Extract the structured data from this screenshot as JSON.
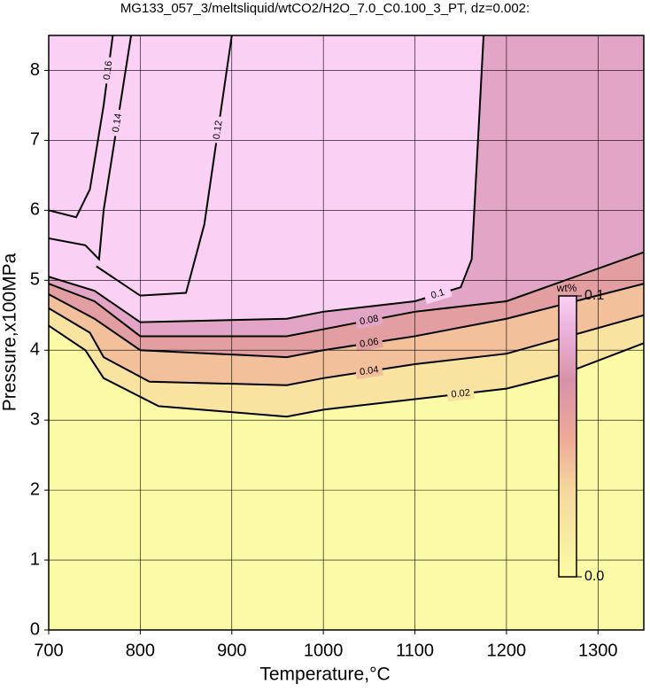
{
  "chart_data": {
    "type": "contour",
    "title": "MG133_057_3/meltsliquid/wtCO2/H2O_7.0_C0.100_3_PT, dz=0.002:",
    "xlabel": "Temperature,°C",
    "ylabel": "Pressure,x100MPa",
    "xlim": [
      700,
      1350
    ],
    "ylim": [
      0,
      8.5
    ],
    "xticks": [
      700,
      800,
      900,
      1000,
      1100,
      1200,
      1300
    ],
    "yticks": [
      0,
      1,
      2,
      3,
      4,
      5,
      6,
      7,
      8
    ],
    "grid": true,
    "colorbar": {
      "label": "wt%",
      "zlim": [
        0,
        0.1
      ],
      "ticks": [
        {
          "value": 0,
          "label": "0.0"
        },
        0.1
      ]
    },
    "colorscale": [
      [
        0,
        "#fbfaa6"
      ],
      [
        0.03,
        "#f6d89e"
      ],
      [
        0.05,
        "#eda99a"
      ],
      [
        0.07,
        "#d792a8"
      ],
      [
        0.09,
        "#eeb7e3"
      ],
      [
        0.1,
        "#fbd0f5"
      ]
    ],
    "contours": [
      {
        "level": 0.02,
        "x": [
          700,
          740,
          760,
          820,
          960,
          1000,
          1100,
          1200,
          1260,
          1350
        ],
        "y": [
          4.35,
          4.0,
          3.6,
          3.2,
          3.05,
          3.15,
          3.3,
          3.45,
          3.65,
          4.1
        ]
      },
      {
        "level": 0.04,
        "x": [
          700,
          745,
          760,
          810,
          960,
          1000,
          1100,
          1200,
          1350
        ],
        "y": [
          4.6,
          4.25,
          3.9,
          3.55,
          3.5,
          3.6,
          3.8,
          3.95,
          4.5
        ]
      },
      {
        "level": 0.06,
        "x": [
          700,
          750,
          800,
          960,
          1000,
          1100,
          1200,
          1350
        ],
        "y": [
          4.8,
          4.45,
          4.0,
          3.9,
          4.0,
          4.2,
          4.45,
          4.95
        ]
      },
      {
        "level": 0.08,
        "x": [
          700,
          750,
          800,
          960,
          1000,
          1100,
          1200,
          1350
        ],
        "y": [
          4.95,
          4.7,
          4.2,
          4.2,
          4.3,
          4.55,
          4.7,
          5.4
        ]
      },
      {
        "level": 0.1,
        "x": [
          700,
          750,
          800,
          960,
          1000,
          1100,
          1150,
          1162,
          1175
        ],
        "y": [
          5.05,
          4.85,
          4.4,
          4.45,
          4.55,
          4.7,
          4.9,
          5.3,
          8.5
        ]
      },
      {
        "level": 0.12,
        "x": [
          752,
          800,
          850,
          870,
          900
        ],
        "y": [
          5.2,
          4.78,
          4.82,
          5.8,
          8.5
        ]
      },
      {
        "level": 0.14,
        "x": [
          700,
          740,
          755,
          760,
          790
        ],
        "y": [
          5.6,
          5.5,
          5.3,
          6.0,
          8.5
        ]
      },
      {
        "level": 0.16,
        "x": [
          700,
          730,
          745,
          760,
          770
        ],
        "y": [
          6.0,
          5.9,
          6.3,
          7.5,
          8.5
        ]
      }
    ]
  }
}
